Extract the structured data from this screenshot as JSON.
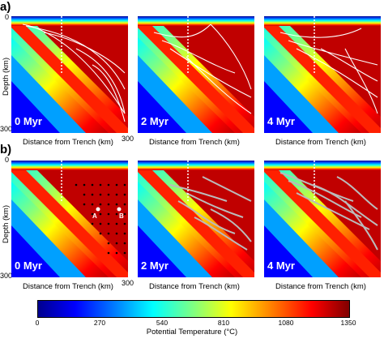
{
  "rows": [
    {
      "label": "a)",
      "panels": [
        "0 Myr",
        "2 Myr",
        "4 Myr"
      ]
    },
    {
      "label": "b)",
      "panels": [
        "0 Myr",
        "2 Myr",
        "4 Myr"
      ]
    }
  ],
  "axes": {
    "xlabel": "Distance from Trench (km)",
    "ylabel": "Depth (km)",
    "x_tick_start": "0",
    "x_tick_end": "300",
    "y_tick_start": "0",
    "y_tick_end": "300"
  },
  "markers": {
    "a": "A",
    "b": "B"
  },
  "colorbar": {
    "title": "Potential Temperature (°C)",
    "ticks": [
      "0",
      "270",
      "540",
      "810",
      "1080",
      "1350"
    ],
    "min": 0,
    "max": 1350
  },
  "colors": {
    "mantle_hot": "#c00000",
    "flow_lines": "#ffffff",
    "particle_paths": "#bbbbbb"
  }
}
